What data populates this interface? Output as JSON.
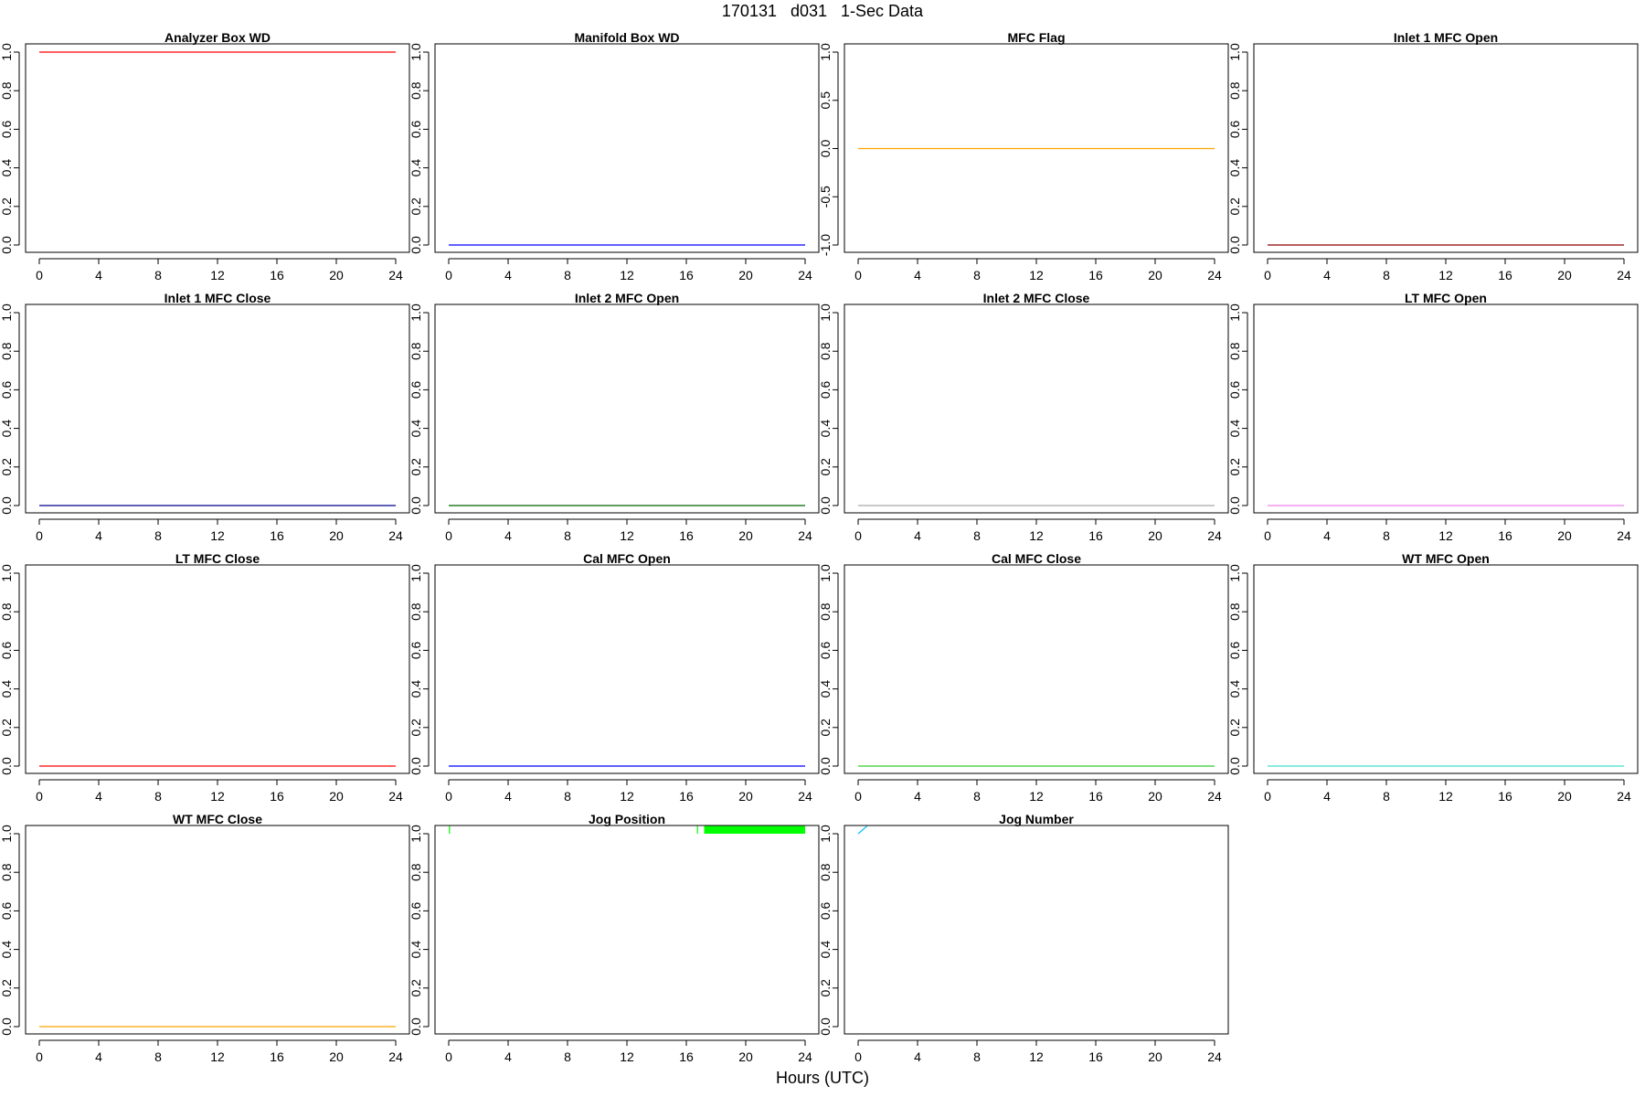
{
  "figure": {
    "title": "170131   d031   1-Sec Data",
    "xlabel": "Hours (UTC)"
  },
  "chart_data": [
    {
      "type": "line",
      "title": "Analyzer Box WD",
      "color": "#ff0000",
      "xlim": [
        0,
        24
      ],
      "xticks": [
        0,
        4,
        8,
        12,
        16,
        20,
        24
      ],
      "ylim": [
        0,
        1
      ],
      "yticks": [
        "0.0",
        "0.2",
        "0.4",
        "0.6",
        "0.8",
        "1.0"
      ],
      "x": [
        0,
        24
      ],
      "y": [
        1,
        1
      ],
      "grid": false
    },
    {
      "type": "line",
      "title": "Manifold Box WD",
      "color": "#0000ff",
      "xlim": [
        0,
        24
      ],
      "xticks": [
        0,
        4,
        8,
        12,
        16,
        20,
        24
      ],
      "ylim": [
        0,
        1
      ],
      "yticks": [
        "0.0",
        "0.2",
        "0.4",
        "0.6",
        "0.8",
        "1.0"
      ],
      "x": [
        0,
        24
      ],
      "y": [
        0,
        0
      ],
      "grid": false
    },
    {
      "type": "line",
      "title": "MFC Flag",
      "color": "#ffa500",
      "xlim": [
        0,
        24
      ],
      "xticks": [
        0,
        4,
        8,
        12,
        16,
        20,
        24
      ],
      "ylim": [
        -1,
        1
      ],
      "yticks": [
        "-1.0",
        "-0.5",
        "0.0",
        "0.5",
        "1.0"
      ],
      "x": [
        0,
        24
      ],
      "y": [
        0,
        0
      ],
      "grid": false
    },
    {
      "type": "line",
      "title": "Inlet 1 MFC Open",
      "color": "#8b0000",
      "xlim": [
        0,
        24
      ],
      "xticks": [
        0,
        4,
        8,
        12,
        16,
        20,
        24
      ],
      "ylim": [
        0,
        1
      ],
      "yticks": [
        "0.0",
        "0.2",
        "0.4",
        "0.6",
        "0.8",
        "1.0"
      ],
      "x": [
        0,
        24
      ],
      "y": [
        0,
        0
      ],
      "grid": false
    },
    {
      "type": "line",
      "title": "Inlet 1 MFC Close",
      "color": "#00008b",
      "xlim": [
        0,
        24
      ],
      "xticks": [
        0,
        4,
        8,
        12,
        16,
        20,
        24
      ],
      "ylim": [
        0,
        1
      ],
      "yticks": [
        "0.0",
        "0.2",
        "0.4",
        "0.6",
        "0.8",
        "1.0"
      ],
      "x": [
        0,
        24
      ],
      "y": [
        0,
        0
      ],
      "grid": false
    },
    {
      "type": "line",
      "title": "Inlet 2 MFC Open",
      "color": "#006400",
      "xlim": [
        0,
        24
      ],
      "xticks": [
        0,
        4,
        8,
        12,
        16,
        20,
        24
      ],
      "ylim": [
        0,
        1
      ],
      "yticks": [
        "0.0",
        "0.2",
        "0.4",
        "0.6",
        "0.8",
        "1.0"
      ],
      "x": [
        0,
        24
      ],
      "y": [
        0,
        0
      ],
      "grid": false
    },
    {
      "type": "line",
      "title": "Inlet 2 MFC Close",
      "color": "#a9a9a9",
      "xlim": [
        0,
        24
      ],
      "xticks": [
        0,
        4,
        8,
        12,
        16,
        20,
        24
      ],
      "ylim": [
        0,
        1
      ],
      "yticks": [
        "0.0",
        "0.2",
        "0.4",
        "0.6",
        "0.8",
        "1.0"
      ],
      "x": [
        0,
        24
      ],
      "y": [
        0,
        0
      ],
      "grid": false
    },
    {
      "type": "line",
      "title": "LT MFC Open",
      "color": "#ee82ee",
      "xlim": [
        0,
        24
      ],
      "xticks": [
        0,
        4,
        8,
        12,
        16,
        20,
        24
      ],
      "ylim": [
        0,
        1
      ],
      "yticks": [
        "0.0",
        "0.2",
        "0.4",
        "0.6",
        "0.8",
        "1.0"
      ],
      "x": [
        0,
        24
      ],
      "y": [
        0,
        0
      ],
      "grid": false
    },
    {
      "type": "line",
      "title": "LT MFC Close",
      "color": "#ff0000",
      "xlim": [
        0,
        24
      ],
      "xticks": [
        0,
        4,
        8,
        12,
        16,
        20,
        24
      ],
      "ylim": [
        0,
        1
      ],
      "yticks": [
        "0.0",
        "0.2",
        "0.4",
        "0.6",
        "0.8",
        "1.0"
      ],
      "x": [
        0,
        24
      ],
      "y": [
        0,
        0
      ],
      "grid": false
    },
    {
      "type": "line",
      "title": "Cal MFC Open",
      "color": "#0000ff",
      "xlim": [
        0,
        24
      ],
      "xticks": [
        0,
        4,
        8,
        12,
        16,
        20,
        24
      ],
      "ylim": [
        0,
        1
      ],
      "yticks": [
        "0.0",
        "0.2",
        "0.4",
        "0.6",
        "0.8",
        "1.0"
      ],
      "x": [
        0,
        24
      ],
      "y": [
        0,
        0
      ],
      "grid": false
    },
    {
      "type": "line",
      "title": "Cal MFC Close",
      "color": "#32cd32",
      "xlim": [
        0,
        24
      ],
      "xticks": [
        0,
        4,
        8,
        12,
        16,
        20,
        24
      ],
      "ylim": [
        0,
        1
      ],
      "yticks": [
        "0.0",
        "0.2",
        "0.4",
        "0.6",
        "0.8",
        "1.0"
      ],
      "x": [
        0,
        24
      ],
      "y": [
        0,
        0
      ],
      "grid": false
    },
    {
      "type": "line",
      "title": "WT MFC Open",
      "color": "#40e0d0",
      "xlim": [
        0,
        24
      ],
      "xticks": [
        0,
        4,
        8,
        12,
        16,
        20,
        24
      ],
      "ylim": [
        0,
        1
      ],
      "yticks": [
        "0.0",
        "0.2",
        "0.4",
        "0.6",
        "0.8",
        "1.0"
      ],
      "x": [
        0,
        24
      ],
      "y": [
        0,
        0
      ],
      "grid": false
    },
    {
      "type": "line",
      "title": "WT MFC Close",
      "color": "#ffa500",
      "xlim": [
        0,
        24
      ],
      "xticks": [
        0,
        4,
        8,
        12,
        16,
        20,
        24
      ],
      "ylim": [
        0,
        1
      ],
      "yticks": [
        "0.0",
        "0.2",
        "0.4",
        "0.6",
        "0.8",
        "1.0"
      ],
      "x": [
        0,
        24
      ],
      "y": [
        0,
        0
      ],
      "grid": false
    },
    {
      "type": "line",
      "title": "Jog Position",
      "color": "#00ff00",
      "xlim": [
        0,
        24
      ],
      "xticks": [
        0,
        4,
        8,
        12,
        16,
        20,
        24
      ],
      "ylim": [
        0,
        1
      ],
      "yticks": [
        "0.0",
        "0.2",
        "0.4",
        "0.6",
        "0.8",
        "1.0"
      ],
      "segments": [
        {
          "x": [
            0.05,
            0.05
          ],
          "y": [
            1.0,
            1.04
          ]
        },
        {
          "x": [
            16.75,
            16.75
          ],
          "y": [
            1.0,
            1.04
          ]
        },
        {
          "x": [
            17.2,
            24.0
          ],
          "y": [
            1.0,
            1.04
          ],
          "filled": true
        }
      ],
      "grid": false
    },
    {
      "type": "line",
      "title": "Jog Number",
      "color": "#00bfff",
      "xlim": [
        0,
        24
      ],
      "xticks": [
        0,
        4,
        8,
        12,
        16,
        20,
        24
      ],
      "ylim": [
        0,
        1
      ],
      "yticks": [
        "0.0",
        "0.2",
        "0.4",
        "0.6",
        "0.8",
        "1.0"
      ],
      "x": [
        0,
        0.6
      ],
      "y": [
        1.0,
        1.04
      ],
      "grid": false
    }
  ]
}
